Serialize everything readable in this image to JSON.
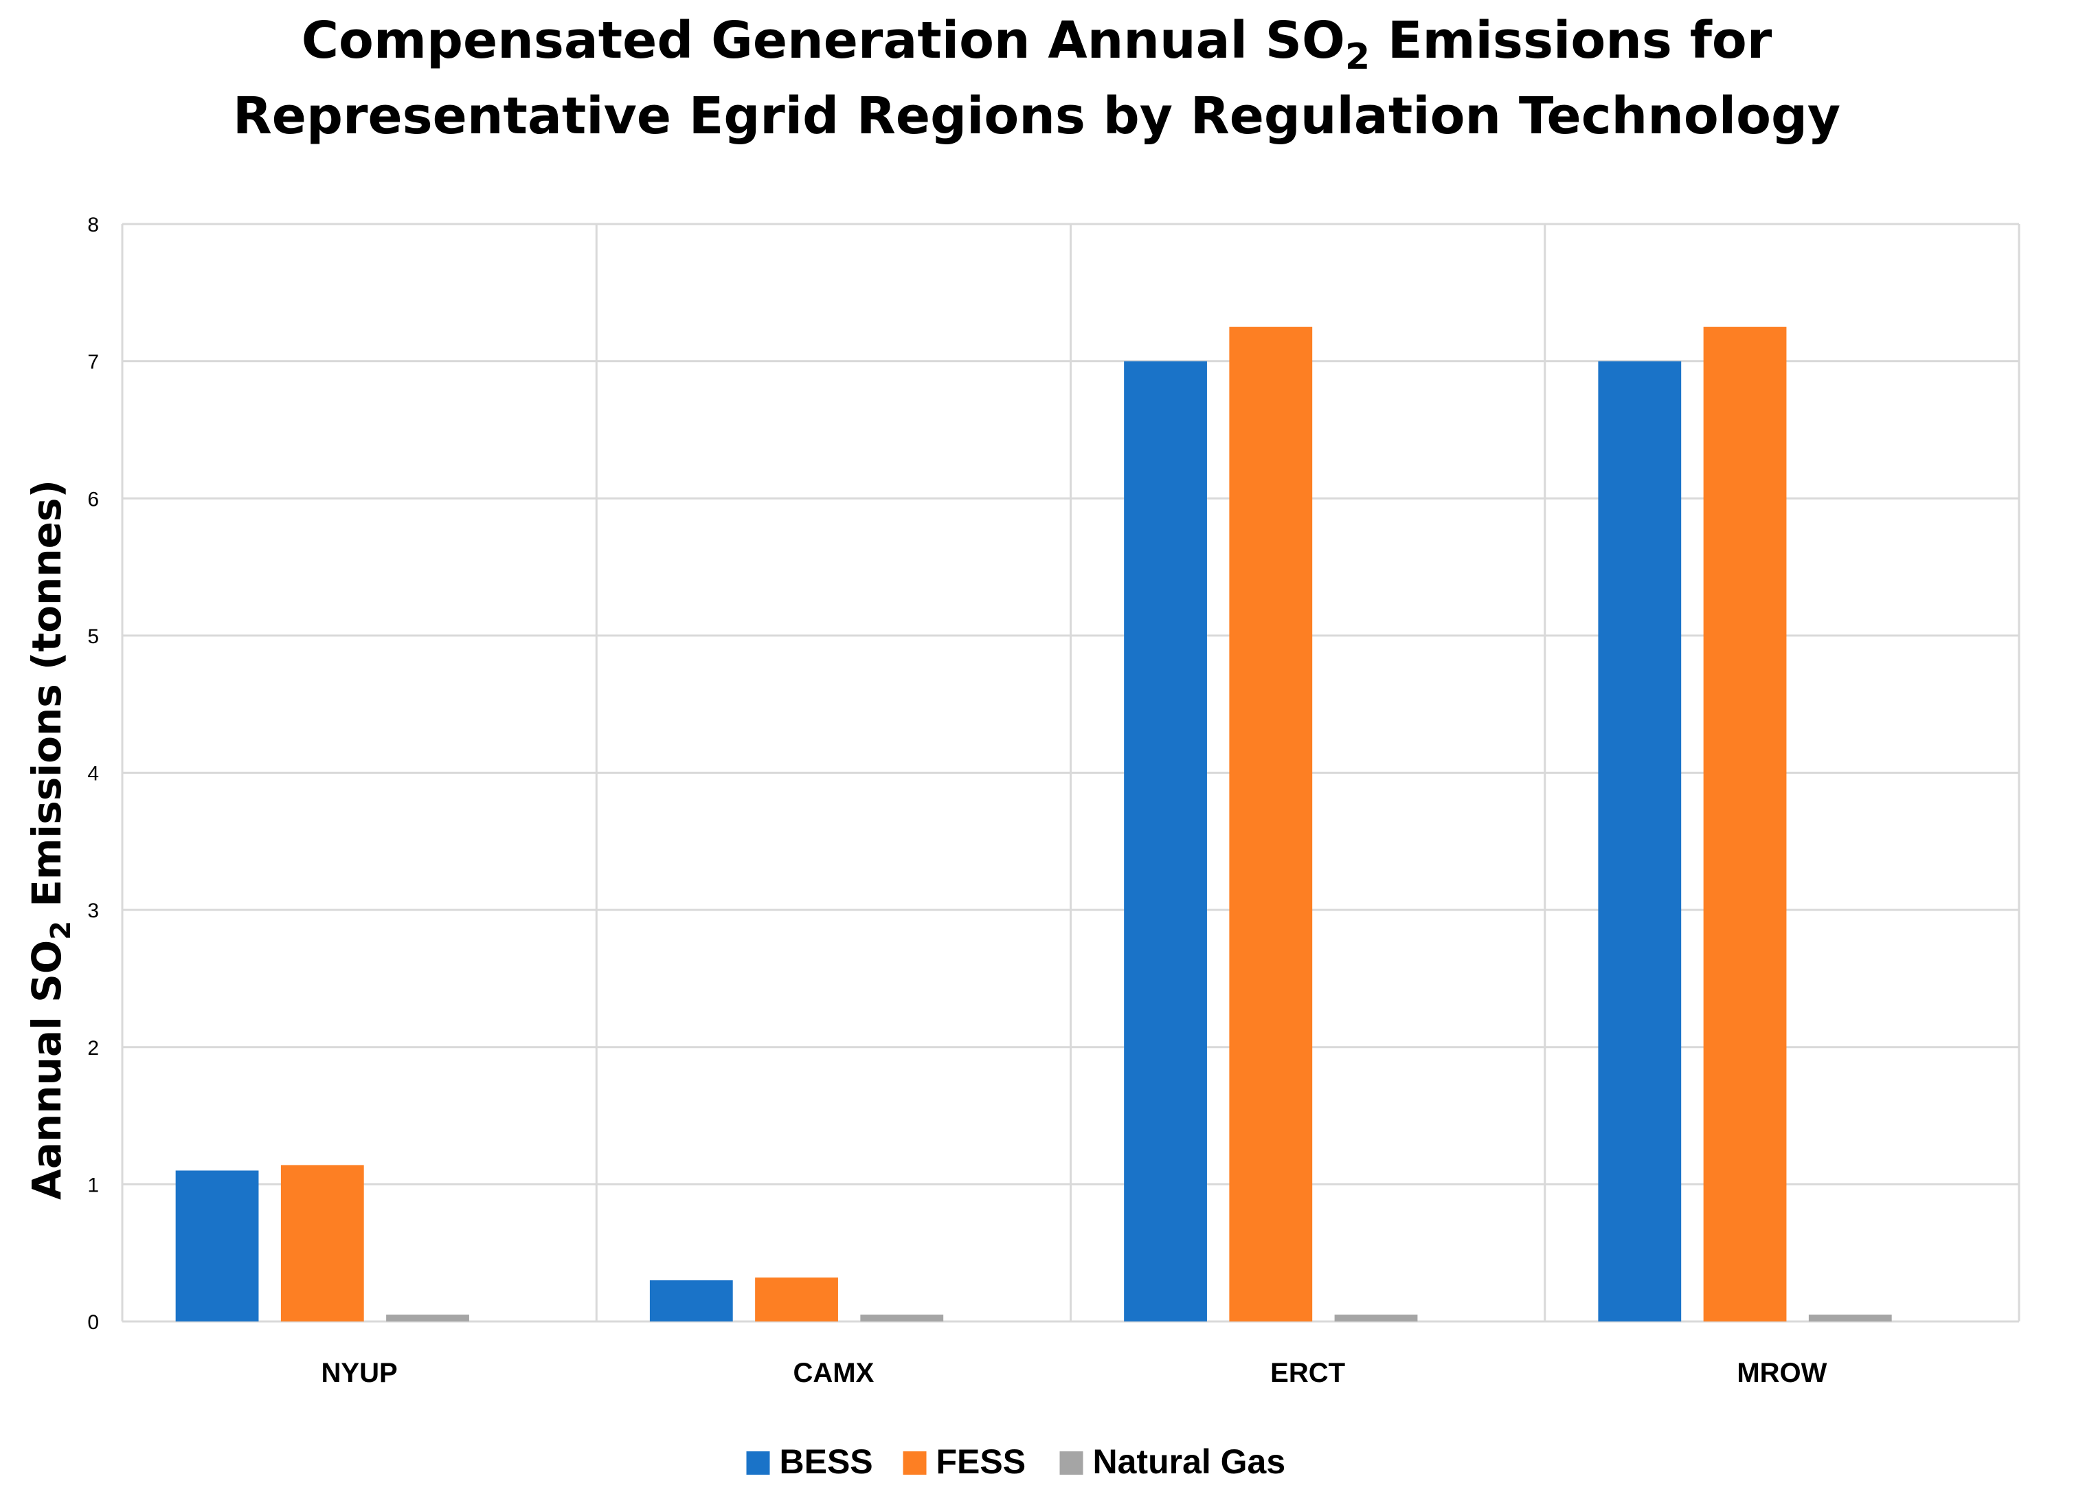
{
  "chart_data": {
    "type": "bar",
    "title": {
      "line1_pre": "Compensated Generation Annual SO",
      "line1_sub": "2",
      "line1_post": " Emissions for",
      "line2": "Representative Egrid Regions by Regulation Technology"
    },
    "ylabel": {
      "pre": "Aannual SO",
      "sub": "2",
      "post": " Emissions (tonnes)"
    },
    "xlabel": "",
    "ylim": [
      0,
      8
    ],
    "yticks": [
      0,
      1,
      2,
      3,
      4,
      5,
      6,
      7,
      8
    ],
    "grid": true,
    "legend_position": "bottom-center",
    "categories": [
      "NYUP",
      "CAMX",
      "ERCT",
      "MROW"
    ],
    "series": [
      {
        "name": "BESS",
        "color": "#1a73c8",
        "values": [
          1.1,
          0.3,
          7.0,
          7.0
        ]
      },
      {
        "name": "FESS",
        "color": "#fd7f23",
        "values": [
          1.14,
          0.32,
          7.25,
          7.25
        ]
      },
      {
        "name": "Natural Gas",
        "color": "#a5a5a5",
        "values": [
          0.05,
          0.05,
          0.05,
          0.05
        ]
      }
    ]
  }
}
